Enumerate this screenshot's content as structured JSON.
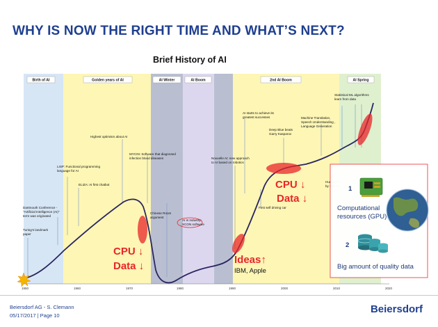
{
  "slide": {
    "title": "WHY IS NOW THE RIGHT TIME AND WHAT’S NEXT?",
    "subtitle": "Brief History of AI"
  },
  "eras": [
    {
      "label": "Birth of AI",
      "color": "#d7e6f5"
    },
    {
      "label": "Golden years of AI",
      "color": "#fdf6b5"
    },
    {
      "label": "AI Winter",
      "color": "#b9bfd1"
    },
    {
      "label": "AI Boom",
      "color": "#dcd7ef"
    },
    {
      "label": "2nd AI Boom",
      "color": "#fdf6b5"
    },
    {
      "label": "AI Spring",
      "color": "#dff0cf"
    }
  ],
  "x_ticks": [
    "1950",
    "1960",
    "1970",
    "1980",
    "1990",
    "2000",
    "2010",
    "2020"
  ],
  "annotations": {
    "turing": [
      "Turing's landmark",
      "paper"
    ],
    "dartmouth": [
      "Dartmouth Conference -",
      "\"Artificial Intelligence (AI)\"",
      "term was originated"
    ],
    "lisp": [
      "LISP: Functional programming",
      "language for AI"
    ],
    "eliza": [
      "ELIZA: AI first chatbot"
    ],
    "optimism": [
      "Highest optimism about AI"
    ],
    "mycin": [
      "MYCIN: Software that diagnosed",
      "infection blood diseases"
    ],
    "chinese": [
      "Chinese Room",
      "argument"
    ],
    "xcon": [
      "AI in industry:",
      "XCON software"
    ],
    "nouvelle": [
      "Nouvelle AI: new approach",
      "to AI based on robotics"
    ],
    "greatest": [
      "AI starts to achieve its",
      "greatest successes"
    ],
    "deepblue": [
      "Deep Blue beats",
      "Garry Kasparov"
    ],
    "selfdriving": [
      "First self driving car"
    ],
    "mt": [
      "Machine Translation,",
      "Speech Understanding ,",
      "Language Generation"
    ],
    "statml": [
      "Statistical ML algorithms",
      "learn from data"
    ],
    "hidden": [
      "Human le...",
      "by IBM W..."
    ]
  },
  "callouts": {
    "cpu1": "CPU ↓",
    "data1": "Data ↓",
    "ideas": "Ideas↑",
    "ibm": "IBM, Apple",
    "cpu2": "CPU ↓",
    "data2": "Data ↓"
  },
  "infobox": {
    "n1": "1",
    "label1a": "Computational",
    "label1b": "resources (GPU)",
    "n2": "2",
    "label2": "Big amount of quality data"
  },
  "footer": {
    "company": "Beiersdorf AG - S. Clemann",
    "date_page": "05/17/2017 |  Page 10",
    "logo": "Beiersdorf"
  }
}
